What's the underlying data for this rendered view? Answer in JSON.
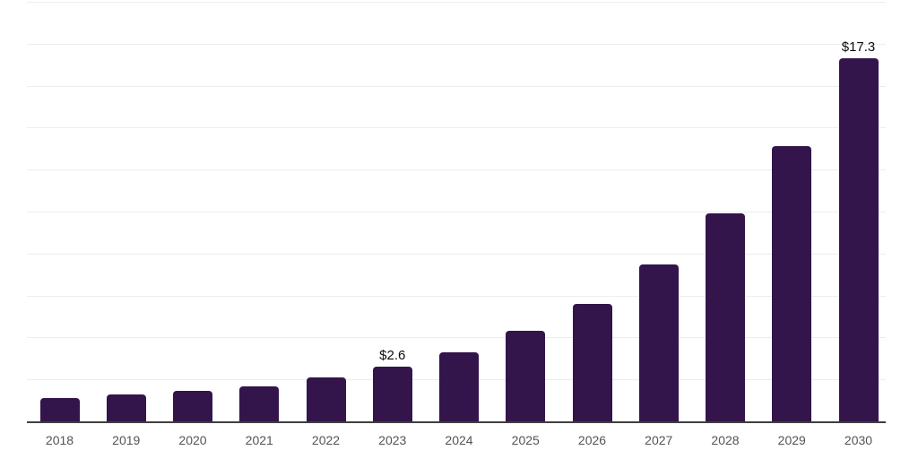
{
  "chart_data": {
    "type": "bar",
    "title": "",
    "xlabel": "",
    "ylabel": "",
    "categories": [
      "2018",
      "2019",
      "2020",
      "2021",
      "2022",
      "2023",
      "2024",
      "2025",
      "2026",
      "2027",
      "2028",
      "2029",
      "2030"
    ],
    "values": [
      1.1,
      1.3,
      1.45,
      1.65,
      2.1,
      2.6,
      3.3,
      4.3,
      5.6,
      7.5,
      9.9,
      13.1,
      17.3
    ],
    "data_labels": {
      "2023": "$2.6",
      "2030": "$17.3"
    },
    "ylim": [
      0,
      20
    ],
    "grid": {
      "visible": true,
      "step": 2
    },
    "legend": "none",
    "colors": {
      "bar": "#33154c",
      "gridline": "#ededed",
      "axis_line": "#3f3f3f",
      "tick_label": "#545454",
      "value_label": "#0c0c0c",
      "background": "#ffffff"
    }
  }
}
